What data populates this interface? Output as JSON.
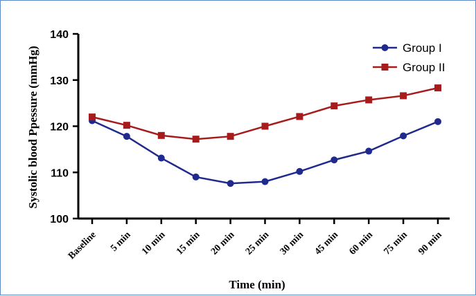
{
  "chart_data": {
    "type": "line",
    "categories": [
      "Baseline",
      "5 min",
      "10 min",
      "15 min",
      "20 min",
      "25 min",
      "30 min",
      "45 min",
      "60 min",
      "75 min",
      "90 min"
    ],
    "series": [
      {
        "name": "Group I",
        "values": [
          121.2,
          117.8,
          113.1,
          109.0,
          107.6,
          108.0,
          110.2,
          112.7,
          114.6,
          117.9,
          121.0
        ],
        "color": "#1f2a8c",
        "marker": "circle"
      },
      {
        "name": "Group II",
        "values": [
          122.0,
          120.2,
          118.0,
          117.2,
          117.8,
          120.0,
          122.1,
          124.4,
          125.7,
          126.6,
          128.3
        ],
        "color": "#a61c1c",
        "marker": "square"
      }
    ],
    "xlabel": "Time (min)",
    "ylabel": "Systolic blood Ppessure (mmHg)",
    "ylim": [
      100,
      140
    ],
    "yticks": [
      100,
      110,
      120,
      130,
      140
    ],
    "grid": false,
    "legend": "top-right"
  }
}
